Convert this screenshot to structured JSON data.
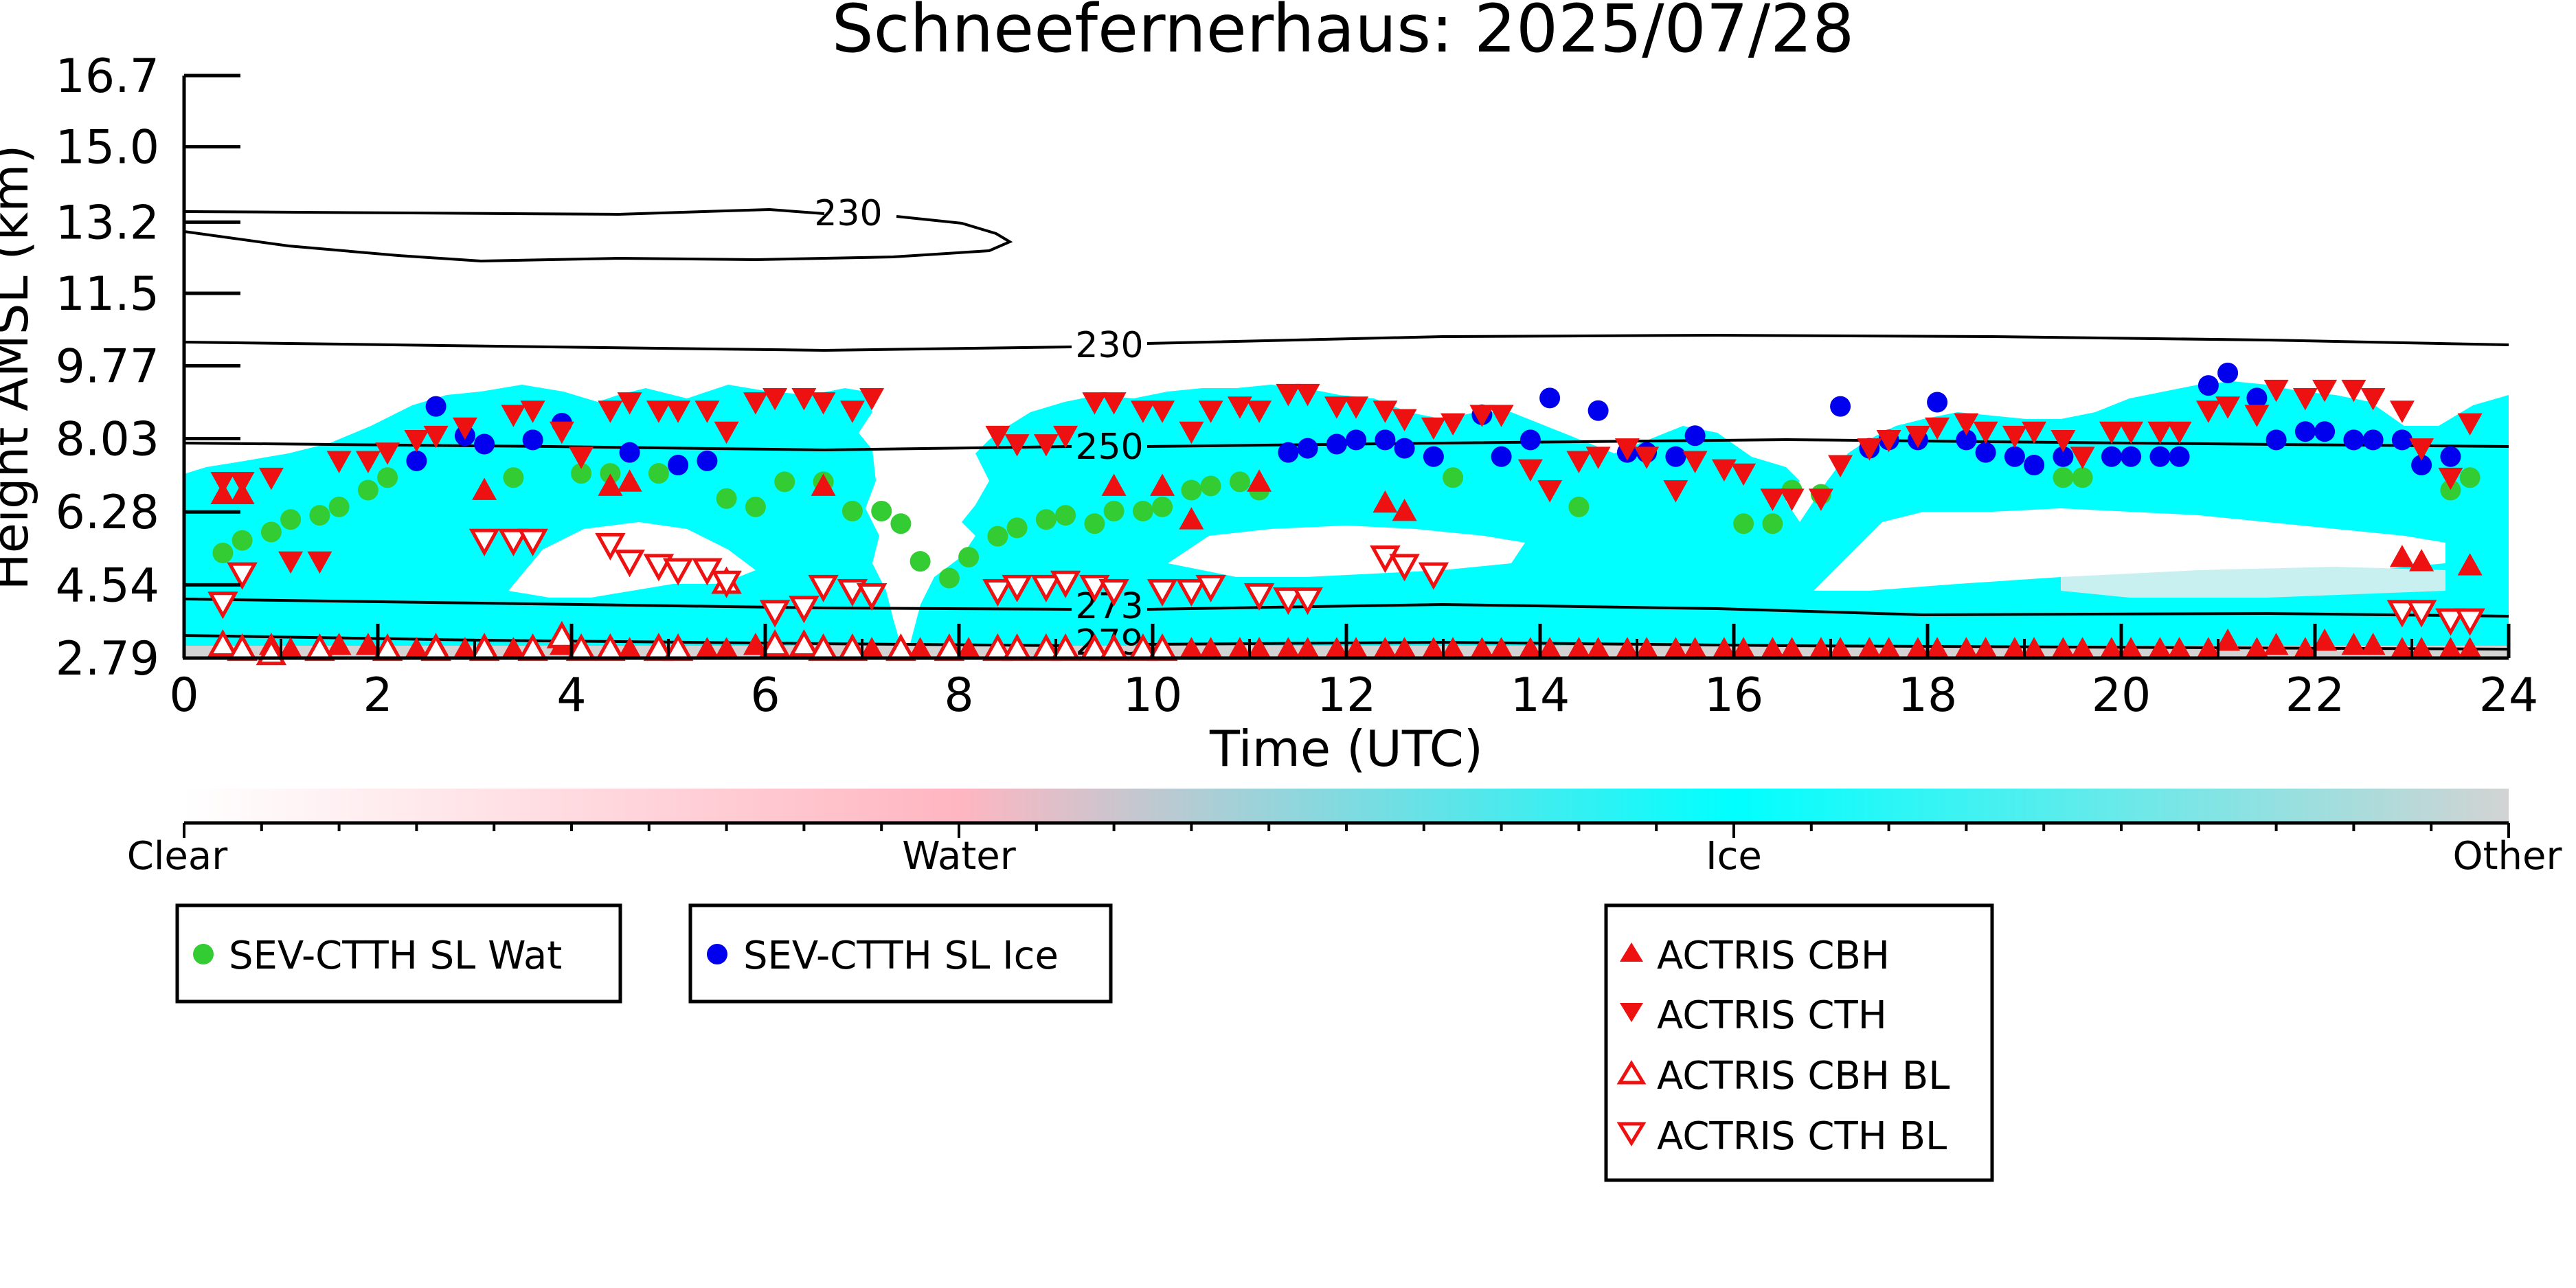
{
  "chart_data": {
    "type": "scatter",
    "title": "Schneefernerhaus: 2025/07/28",
    "xlabel": "Time (UTC)",
    "ylabel": "Height AMSL (km)",
    "xlim": [
      0,
      24
    ],
    "ylim": [
      2.79,
      16.7
    ],
    "x_ticks": [
      "0",
      "2",
      "4",
      "6",
      "8",
      "10",
      "12",
      "14",
      "16",
      "18",
      "20",
      "22",
      "24"
    ],
    "y_ticks": [
      "2.79",
      "4.54",
      "6.28",
      "8.03",
      "9.77",
      "11.5",
      "13.2",
      "15.0",
      "16.7"
    ],
    "contour_labels": [
      "230",
      "230",
      "250",
      "273",
      "279"
    ],
    "colorbar": {
      "labels": [
        "Clear",
        "Water",
        "Ice",
        "Other"
      ],
      "colors": [
        "#ffffff",
        "#ffb6c1",
        "#00ffff",
        "#d3d3d3"
      ]
    },
    "colors": {
      "ice_cloud": "#00ffff",
      "water_marker": "#33cc33",
      "ice_marker": "#0000ee",
      "actris": "#ee1111"
    },
    "series": [
      {
        "name": "SEV-CTTH SL Wat",
        "marker": "circle",
        "color": "#33cc33",
        "x": [
          0.4,
          0.6,
          0.9,
          1.1,
          1.4,
          1.6,
          1.9,
          2.1,
          3.4,
          4.1,
          4.4,
          4.9,
          5.6,
          5.9,
          6.2,
          6.6,
          6.9,
          7.2,
          7.4,
          7.6,
          7.9,
          8.1,
          8.4,
          8.6,
          8.9,
          9.1,
          9.4,
          9.6,
          9.9,
          10.1,
          10.4,
          10.6,
          10.9,
          11.1,
          13.1,
          14.4,
          16.1,
          16.4,
          16.6,
          16.9,
          19.4,
          19.6,
          23.4,
          23.6
        ],
        "y": [
          5.3,
          5.6,
          5.8,
          6.1,
          6.2,
          6.4,
          6.8,
          7.1,
          7.1,
          7.2,
          7.2,
          7.2,
          6.6,
          6.4,
          7.0,
          7.0,
          6.3,
          6.3,
          6.0,
          5.1,
          4.7,
          5.2,
          5.7,
          5.9,
          6.1,
          6.2,
          6.0,
          6.3,
          6.3,
          6.4,
          6.8,
          6.9,
          7.0,
          6.8,
          7.1,
          6.4,
          6.0,
          6.0,
          6.8,
          6.7,
          7.1,
          7.1,
          6.8,
          7.1
        ]
      },
      {
        "name": "SEV-CTTH SL Ice",
        "marker": "circle",
        "color": "#0000ee",
        "x": [
          2.4,
          2.6,
          2.9,
          3.1,
          3.6,
          3.9,
          4.6,
          5.1,
          5.4,
          11.4,
          11.6,
          11.9,
          12.1,
          12.4,
          12.6,
          12.9,
          13.4,
          13.6,
          13.9,
          14.1,
          14.6,
          14.9,
          15.1,
          15.4,
          15.6,
          17.1,
          17.4,
          17.6,
          17.9,
          18.1,
          18.4,
          18.6,
          18.9,
          19.1,
          19.4,
          19.9,
          20.1,
          20.4,
          20.6,
          20.9,
          21.1,
          21.4,
          21.6,
          21.9,
          22.1,
          22.4,
          22.6,
          22.9,
          23.1,
          23.4
        ],
        "y": [
          7.5,
          8.8,
          8.1,
          7.9,
          8.0,
          8.4,
          7.7,
          7.4,
          7.5,
          7.7,
          7.8,
          7.9,
          8.0,
          8.0,
          7.8,
          7.6,
          8.6,
          7.6,
          8.0,
          9.0,
          8.7,
          7.7,
          7.7,
          7.6,
          8.1,
          8.8,
          7.8,
          8.0,
          8.0,
          8.9,
          8.0,
          7.7,
          7.6,
          7.4,
          7.6,
          7.6,
          7.6,
          7.6,
          7.6,
          9.3,
          9.6,
          9.0,
          8.0,
          8.2,
          8.2,
          8.0,
          8.0,
          8.0,
          7.4,
          7.6
        ]
      },
      {
        "name": "ACTRIS CBH",
        "marker": "triangle-up",
        "color": "#ee1111",
        "x": [
          0.4,
          0.6,
          0.9,
          1.1,
          1.4,
          1.6,
          1.9,
          2.1,
          2.4,
          2.6,
          2.9,
          3.1,
          3.4,
          3.6,
          3.9,
          4.1,
          4.4,
          4.6,
          4.9,
          5.1,
          5.4,
          5.6,
          5.9,
          6.1,
          6.4,
          6.6,
          6.9,
          7.1,
          7.4,
          7.6,
          7.9,
          8.1,
          8.4,
          8.6,
          8.9,
          9.1,
          9.4,
          9.6,
          9.9,
          10.1,
          10.4,
          10.6,
          10.9,
          11.1,
          11.4,
          11.6,
          11.9,
          12.1,
          12.4,
          12.6,
          12.9,
          13.1,
          13.4,
          13.6,
          13.9,
          14.1,
          14.4,
          14.6,
          14.9,
          15.1,
          15.4,
          15.6,
          15.9,
          16.1,
          16.4,
          16.6,
          16.9,
          17.1,
          17.4,
          17.6,
          17.9,
          18.1,
          18.4,
          18.6,
          18.9,
          19.1,
          19.4,
          19.6,
          19.9,
          20.1,
          20.4,
          20.6,
          20.9,
          21.1,
          21.4,
          21.6,
          21.9,
          22.1,
          22.4,
          22.6,
          22.9,
          23.1,
          23.4,
          23.6,
          0.4,
          0.6,
          3.1,
          4.4,
          4.6,
          6.6,
          9.6,
          10.1,
          10.4,
          11.1,
          12.4,
          12.6,
          22.9,
          23.1,
          23.6
        ],
        "y": [
          3.0,
          3.0,
          3.1,
          3.0,
          3.0,
          3.1,
          3.1,
          3.0,
          3.0,
          3.1,
          3.0,
          3.1,
          3.0,
          3.0,
          3.1,
          3.0,
          3.0,
          3.0,
          3.1,
          3.0,
          3.0,
          3.0,
          3.1,
          3.0,
          3.0,
          3.0,
          3.0,
          3.0,
          3.0,
          3.0,
          3.0,
          3.0,
          3.0,
          3.0,
          3.0,
          3.0,
          3.0,
          3.0,
          3.0,
          3.0,
          3.0,
          3.0,
          3.0,
          3.0,
          3.0,
          3.0,
          3.0,
          3.0,
          3.0,
          3.0,
          3.0,
          3.0,
          3.0,
          3.0,
          3.0,
          3.0,
          3.0,
          3.0,
          3.0,
          3.0,
          3.0,
          3.0,
          3.0,
          3.0,
          3.0,
          3.0,
          3.0,
          3.0,
          3.0,
          3.0,
          3.0,
          3.0,
          3.0,
          3.0,
          3.0,
          3.0,
          3.0,
          3.0,
          3.0,
          3.0,
          3.0,
          3.0,
          3.0,
          3.2,
          3.0,
          3.1,
          3.0,
          3.2,
          3.1,
          3.1,
          3.0,
          3.0,
          3.0,
          3.0,
          6.7,
          6.7,
          6.8,
          6.9,
          7.0,
          6.9,
          6.9,
          6.9,
          6.1,
          7.0,
          6.5,
          6.3,
          5.2,
          5.1,
          5.0
        ],
        "note_values": []
      },
      {
        "name": "ACTRIS CTH",
        "marker": "triangle-down",
        "color": "#ee1111",
        "x": [
          0.4,
          0.6,
          0.9,
          1.1,
          1.4,
          1.6,
          1.9,
          2.1,
          2.4,
          2.6,
          2.9,
          3.4,
          3.6,
          3.9,
          4.1,
          4.4,
          4.6,
          4.9,
          5.1,
          5.4,
          5.6,
          5.9,
          6.1,
          6.4,
          6.6,
          6.9,
          7.1,
          8.4,
          8.6,
          8.9,
          9.1,
          9.4,
          9.6,
          9.9,
          10.1,
          10.4,
          10.6,
          10.9,
          11.1,
          11.4,
          11.6,
          11.9,
          12.1,
          12.4,
          12.6,
          12.9,
          13.1,
          13.4,
          13.6,
          13.9,
          14.1,
          14.4,
          14.6,
          14.9,
          15.1,
          15.4,
          15.6,
          15.9,
          16.1,
          16.4,
          16.6,
          16.9,
          17.1,
          17.4,
          17.6,
          17.9,
          18.1,
          18.4,
          18.6,
          18.9,
          19.1,
          19.4,
          19.6,
          19.9,
          20.1,
          20.4,
          20.6,
          20.9,
          21.1,
          21.4,
          21.6,
          21.9,
          22.1,
          22.4,
          22.6,
          22.9,
          23.1,
          23.4,
          23.6
        ],
        "y": [
          7.0,
          7.0,
          7.1,
          5.1,
          5.1,
          7.5,
          7.5,
          7.7,
          8.0,
          8.1,
          8.3,
          8.6,
          8.7,
          8.2,
          7.6,
          8.7,
          8.9,
          8.7,
          8.7,
          8.7,
          8.2,
          8.9,
          9.0,
          9.0,
          8.9,
          8.7,
          9.0,
          8.1,
          7.9,
          7.9,
          8.1,
          8.9,
          8.9,
          8.7,
          8.7,
          8.2,
          8.7,
          8.8,
          8.7,
          9.1,
          9.1,
          8.8,
          8.8,
          8.7,
          8.5,
          8.3,
          8.4,
          8.6,
          8.6,
          7.3,
          6.8,
          7.5,
          7.6,
          7.8,
          7.6,
          6.8,
          7.5,
          7.3,
          7.2,
          6.6,
          6.6,
          6.6,
          7.4,
          7.8,
          8.0,
          8.1,
          8.3,
          8.4,
          8.2,
          8.1,
          8.2,
          8.0,
          7.6,
          8.2,
          8.2,
          8.2,
          8.2,
          8.7,
          8.8,
          8.6,
          9.2,
          9.0,
          9.2,
          9.2,
          9.0,
          8.7,
          7.8,
          7.1,
          8.4
        ]
      },
      {
        "name": "ACTRIS CBH BL",
        "marker": "triangle-up-open",
        "color": "#ee1111",
        "x": [
          0.4,
          0.6,
          0.9,
          1.4,
          2.1,
          2.6,
          3.1,
          3.6,
          3.9,
          4.1,
          4.4,
          4.9,
          5.1,
          5.6,
          6.1,
          6.4,
          6.6,
          6.9,
          7.4,
          7.9,
          8.4,
          8.6,
          8.9,
          9.1,
          9.4,
          9.6,
          9.9,
          10.1
        ],
        "y": [
          3.1,
          3.0,
          2.9,
          3.0,
          3.0,
          3.0,
          3.0,
          3.0,
          3.3,
          3.0,
          3.0,
          3.0,
          3.0,
          4.6,
          3.1,
          3.1,
          3.0,
          3.0,
          3.0,
          3.0,
          3.0,
          3.0,
          3.0,
          3.0,
          3.0,
          3.0,
          3.0,
          3.0
        ]
      },
      {
        "name": "ACTRIS CTH BL",
        "marker": "triangle-down-open",
        "color": "#ee1111",
        "x": [
          0.4,
          0.6,
          3.1,
          3.4,
          3.6,
          4.4,
          4.6,
          4.9,
          5.1,
          5.4,
          5.6,
          6.1,
          6.4,
          6.6,
          6.9,
          7.1,
          8.4,
          8.6,
          8.9,
          9.1,
          9.4,
          9.6,
          10.1,
          10.4,
          10.6,
          11.1,
          11.4,
          11.6,
          12.4,
          12.6,
          12.9,
          22.9,
          23.1,
          23.4,
          23.6
        ],
        "y": [
          4.1,
          4.8,
          5.6,
          5.6,
          5.6,
          5.5,
          5.1,
          5.0,
          4.9,
          4.9,
          4.6,
          3.9,
          4.0,
          4.5,
          4.4,
          4.3,
          4.4,
          4.5,
          4.5,
          4.6,
          4.5,
          4.4,
          4.4,
          4.4,
          4.5,
          4.3,
          4.2,
          4.2,
          5.2,
          5.0,
          4.8,
          3.9,
          3.9,
          3.7,
          3.7
        ]
      }
    ],
    "legend_groups": [
      [
        "SEV-CTTH SL Wat"
      ],
      [
        "SEV-CTTH SL Ice"
      ],
      [
        "ACTRIS CBH",
        "ACTRIS CTH",
        "ACTRIS CBH BL",
        "ACTRIS CTH BL"
      ]
    ]
  }
}
